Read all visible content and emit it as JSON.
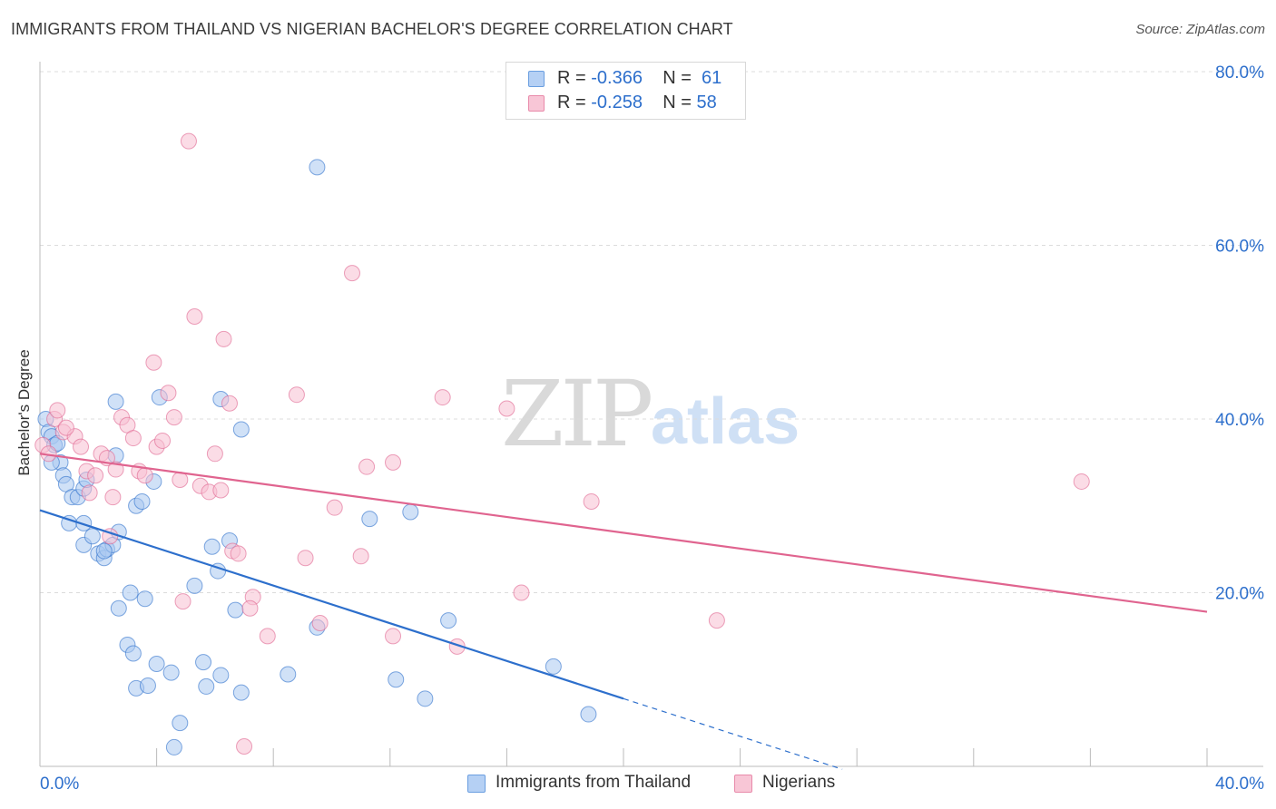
{
  "title": "IMMIGRANTS FROM THAILAND VS NIGERIAN BACHELOR'S DEGREE CORRELATION CHART",
  "source": "Source: ZipAtlas.com",
  "watermark": {
    "zip": "ZIP",
    "atlas": "atlas"
  },
  "legend_top": {
    "rows": [
      {
        "r_label": "R = ",
        "r_value": "-0.366",
        "n_label": "N = ",
        "n_value": "61"
      },
      {
        "r_label": "R = ",
        "r_value": "-0.258",
        "n_label": "N = ",
        "n_value": "58"
      }
    ]
  },
  "chart_data": {
    "type": "scatter",
    "title": "IMMIGRANTS FROM THAILAND VS NIGERIAN BACHELOR'S DEGREE CORRELATION CHART",
    "xlabel": "",
    "ylabel": "Bachelor's Degree",
    "xlim": [
      0,
      40
    ],
    "ylim": [
      0,
      80
    ],
    "x_tick_labels": [
      "0.0%",
      "40.0%"
    ],
    "y_tick_labels": [
      "20.0%",
      "40.0%",
      "60.0%",
      "80.0%"
    ],
    "y_ticks": [
      20,
      40,
      60,
      80
    ],
    "grid": true,
    "legend_position": "bottom",
    "colors": {
      "blue": "#2d6fcc",
      "pink": "#e0648f",
      "blue_fill": "#a9c8f0",
      "pink_fill": "#f7bfd2"
    },
    "series": [
      {
        "name": "Immigrants from Thailand",
        "color": "blue",
        "r": -0.366,
        "n": 61,
        "trend": {
          "x0": 0,
          "y0": 29.5,
          "x1": 20,
          "y1": 7.8,
          "dash_to_x": 27.5
        },
        "points": [
          [
            0.2,
            40
          ],
          [
            0.3,
            38.5
          ],
          [
            0.4,
            38
          ],
          [
            0.5,
            37
          ],
          [
            0.7,
            35
          ],
          [
            0.4,
            35
          ],
          [
            0.8,
            33.5
          ],
          [
            0.9,
            32.5
          ],
          [
            1.1,
            31
          ],
          [
            1.3,
            31
          ],
          [
            1.5,
            32
          ],
          [
            1.6,
            33
          ],
          [
            1.0,
            28
          ],
          [
            1.5,
            28
          ],
          [
            1.5,
            25.5
          ],
          [
            1.8,
            26.5
          ],
          [
            2.0,
            24.5
          ],
          [
            2.2,
            24
          ],
          [
            2.3,
            25
          ],
          [
            2.5,
            25.5
          ],
          [
            2.6,
            35.8
          ],
          [
            2.7,
            27
          ],
          [
            3.3,
            30
          ],
          [
            3.5,
            30.5
          ],
          [
            3.9,
            32.8
          ],
          [
            2.6,
            42
          ],
          [
            4.1,
            42.5
          ],
          [
            6.2,
            42.3
          ],
          [
            2.7,
            18.2
          ],
          [
            3.1,
            20
          ],
          [
            3.6,
            19.3
          ],
          [
            3.0,
            14
          ],
          [
            3.2,
            13
          ],
          [
            4.0,
            11.8
          ],
          [
            4.5,
            10.8
          ],
          [
            3.3,
            9
          ],
          [
            3.7,
            9.3
          ],
          [
            5.3,
            20.8
          ],
          [
            5.6,
            12
          ],
          [
            5.7,
            9.2
          ],
          [
            6.1,
            22.5
          ],
          [
            5.9,
            25.3
          ],
          [
            6.5,
            26
          ],
          [
            6.7,
            18
          ],
          [
            6.2,
            10.5
          ],
          [
            6.9,
            8.5
          ],
          [
            6.9,
            38.8
          ],
          [
            8.5,
            10.6
          ],
          [
            9.5,
            69
          ],
          [
            9.5,
            16
          ],
          [
            11.3,
            28.5
          ],
          [
            12.2,
            10
          ],
          [
            12.7,
            29.3
          ],
          [
            13.2,
            7.8
          ],
          [
            14.0,
            16.8
          ],
          [
            17.6,
            11.5
          ],
          [
            18.8,
            6
          ],
          [
            4.8,
            5
          ],
          [
            4.6,
            2.2
          ],
          [
            0.6,
            37.2
          ],
          [
            2.2,
            24.8
          ]
        ]
      },
      {
        "name": "Nigerians",
        "color": "pink",
        "r": -0.258,
        "n": 58,
        "trend": {
          "x0": 0,
          "y0": 36,
          "x1": 40,
          "y1": 17.8
        },
        "points": [
          [
            0.1,
            37
          ],
          [
            0.3,
            36
          ],
          [
            0.5,
            40
          ],
          [
            0.6,
            41
          ],
          [
            0.8,
            38.5
          ],
          [
            1.2,
            38
          ],
          [
            1.4,
            36.8
          ],
          [
            1.6,
            34
          ],
          [
            1.7,
            31.5
          ],
          [
            1.9,
            33.5
          ],
          [
            2.1,
            36
          ],
          [
            2.3,
            35.5
          ],
          [
            2.5,
            31
          ],
          [
            2.6,
            34.2
          ],
          [
            2.8,
            40.2
          ],
          [
            3.0,
            39.3
          ],
          [
            3.2,
            37.8
          ],
          [
            3.4,
            34
          ],
          [
            3.6,
            33.5
          ],
          [
            3.9,
            46.5
          ],
          [
            4.0,
            36.8
          ],
          [
            4.2,
            37.5
          ],
          [
            4.4,
            43
          ],
          [
            4.6,
            40.2
          ],
          [
            4.8,
            33
          ],
          [
            5.1,
            72
          ],
          [
            5.3,
            51.8
          ],
          [
            5.5,
            32.3
          ],
          [
            5.8,
            31.6
          ],
          [
            6.0,
            36
          ],
          [
            6.2,
            31.8
          ],
          [
            6.3,
            49.2
          ],
          [
            6.5,
            41.8
          ],
          [
            6.6,
            24.8
          ],
          [
            6.8,
            24.5
          ],
          [
            4.9,
            19
          ],
          [
            7.3,
            19.5
          ],
          [
            7.2,
            18.2
          ],
          [
            7.8,
            15
          ],
          [
            8.8,
            42.8
          ],
          [
            9.1,
            24
          ],
          [
            9.6,
            16.5
          ],
          [
            10.1,
            29.8
          ],
          [
            10.7,
            56.8
          ],
          [
            11.0,
            24.2
          ],
          [
            11.2,
            34.5
          ],
          [
            12.1,
            35
          ],
          [
            12.1,
            15
          ],
          [
            13.8,
            42.5
          ],
          [
            14.3,
            13.8
          ],
          [
            16.0,
            41.2
          ],
          [
            16.5,
            20
          ],
          [
            18.9,
            30.5
          ],
          [
            23.2,
            16.8
          ],
          [
            35.7,
            32.8
          ],
          [
            7.0,
            2.3
          ],
          [
            2.4,
            26.5
          ],
          [
            0.9,
            39
          ]
        ]
      }
    ]
  }
}
